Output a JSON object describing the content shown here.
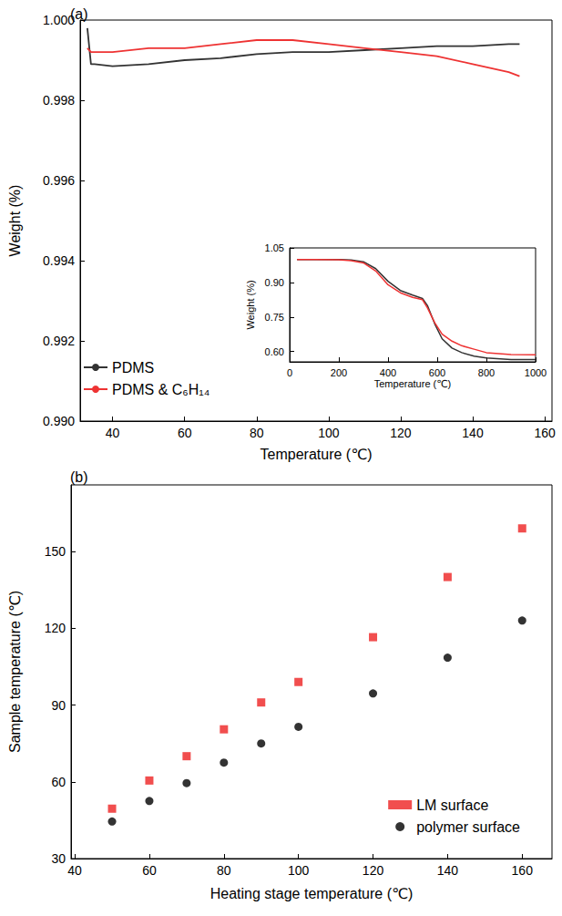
{
  "chart_data": [
    {
      "type": "line",
      "title": "(a)",
      "xlabel": "Temperature (℃)",
      "ylabel": "Weight (%)",
      "x": [
        33,
        34,
        35,
        40,
        50,
        60,
        70,
        80,
        90,
        100,
        110,
        120,
        130,
        140,
        150,
        153
      ],
      "series": [
        {
          "name": "PDMS",
          "color": "#333333",
          "line_style": "solid",
          "values": [
            0.9998,
            0.9989,
            0.9989,
            0.99885,
            0.9989,
            0.999,
            0.99905,
            0.99915,
            0.9992,
            0.9992,
            0.99925,
            0.9993,
            0.99935,
            0.99935,
            0.9994,
            0.9994
          ]
        },
        {
          "name": "PDMS & C₆H₁₄",
          "color": "#ee3333",
          "line_style": "solid",
          "values": [
            0.9993,
            0.9992,
            0.9992,
            0.9992,
            0.9993,
            0.9993,
            0.9994,
            0.9995,
            0.9995,
            0.9994,
            0.9993,
            0.9992,
            0.9991,
            0.9989,
            0.9987,
            0.9986
          ]
        }
      ],
      "xlim": [
        31,
        162
      ],
      "xticks": [
        40,
        60,
        80,
        100,
        120,
        140,
        160
      ],
      "ylim": [
        0.99,
        1.0
      ],
      "yticks": [
        {
          "value": 0.99,
          "label": "0.990"
        },
        0.992,
        0.994,
        0.996,
        0.998,
        {
          "value": 1.0,
          "label": "1.000"
        }
      ],
      "grid": false,
      "legend": "lower left"
    },
    {
      "type": "line",
      "xlabel": "Temperature (℃)",
      "ylabel": "Weight (%)",
      "x": [
        30,
        100,
        200,
        250,
        300,
        350,
        400,
        450,
        500,
        540,
        560,
        590,
        620,
        660,
        700,
        750,
        800,
        900,
        1000
      ],
      "series": [
        {
          "color": "#333333",
          "line_style": "solid",
          "values": [
            1.0,
            1.0,
            1.0,
            0.998,
            0.99,
            0.96,
            0.905,
            0.865,
            0.845,
            0.83,
            0.8,
            0.72,
            0.655,
            0.615,
            0.595,
            0.58,
            0.572,
            0.565,
            0.565
          ]
        },
        {
          "color": "#ee3333",
          "line_style": "solid",
          "values": [
            1.0,
            1.0,
            0.999,
            0.995,
            0.985,
            0.95,
            0.89,
            0.855,
            0.835,
            0.825,
            0.79,
            0.725,
            0.675,
            0.645,
            0.625,
            0.61,
            0.595,
            0.587,
            0.586
          ]
        }
      ],
      "xlim": [
        0,
        1000
      ],
      "xticks": [
        0,
        200,
        400,
        600,
        800,
        1000
      ],
      "ylim": [
        0.555,
        1.05
      ],
      "yticks": [
        {
          "value": 0.6,
          "label": "0.60"
        },
        0.75,
        {
          "value": 0.9,
          "label": "0.90"
        },
        1.05
      ],
      "grid": false
    },
    {
      "type": "scatter",
      "title": "(b)",
      "xlabel": "Heating stage temperature (℃)",
      "ylabel": "Sample temperature (℃)",
      "x": [
        50,
        60,
        70,
        80,
        90,
        100,
        120,
        140,
        160
      ],
      "series": [
        {
          "name": "LM surface",
          "color": "#ee2222",
          "marker": "square",
          "values": [
            49.5,
            60.5,
            70,
            80.5,
            91,
            99,
            116.5,
            140,
            159
          ]
        },
        {
          "name": "polymer surface",
          "color": "#000000",
          "marker": "circle",
          "values": [
            44.5,
            52.5,
            59.5,
            67.5,
            75,
            81.5,
            94.5,
            108.5,
            123
          ]
        }
      ],
      "xlim": [
        39,
        168
      ],
      "xticks": [
        40,
        60,
        80,
        100,
        120,
        140,
        160
      ],
      "ylim": [
        30,
        176
      ],
      "yticks": [
        30,
        60,
        90,
        120,
        150
      ],
      "grid": false,
      "legend": "lower right"
    }
  ]
}
